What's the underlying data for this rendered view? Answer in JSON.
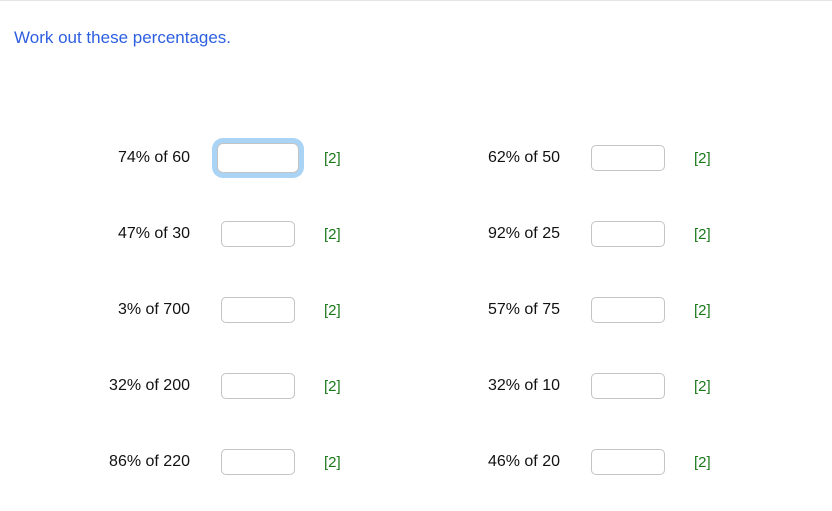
{
  "heading": "Work out these percentages.",
  "colors": {
    "heading": "#2e5fe0",
    "text": "#111111",
    "marks": "#1a7a1a",
    "input_border": "#c4c4c4",
    "focus_ring": "#aad4f5",
    "divider": "#e5e5e5",
    "background": "#ffffff"
  },
  "rows": [
    {
      "left": {
        "label": "74% of 60",
        "marks": "[2]",
        "focused": true
      },
      "right": {
        "label": "62% of 50",
        "marks": "[2]",
        "focused": false
      }
    },
    {
      "left": {
        "label": "47% of 30",
        "marks": "[2]",
        "focused": false
      },
      "right": {
        "label": "92% of 25",
        "marks": "[2]",
        "focused": false
      }
    },
    {
      "left": {
        "label": "3% of 700",
        "marks": "[2]",
        "focused": false
      },
      "right": {
        "label": "57% of 75",
        "marks": "[2]",
        "focused": false
      }
    },
    {
      "left": {
        "label": "32% of 200",
        "marks": "[2]",
        "focused": false
      },
      "right": {
        "label": "32% of 10",
        "marks": "[2]",
        "focused": false
      }
    },
    {
      "left": {
        "label": "86% of 220",
        "marks": "[2]",
        "focused": false
      },
      "right": {
        "label": "46% of 20",
        "marks": "[2]",
        "focused": false
      }
    }
  ]
}
